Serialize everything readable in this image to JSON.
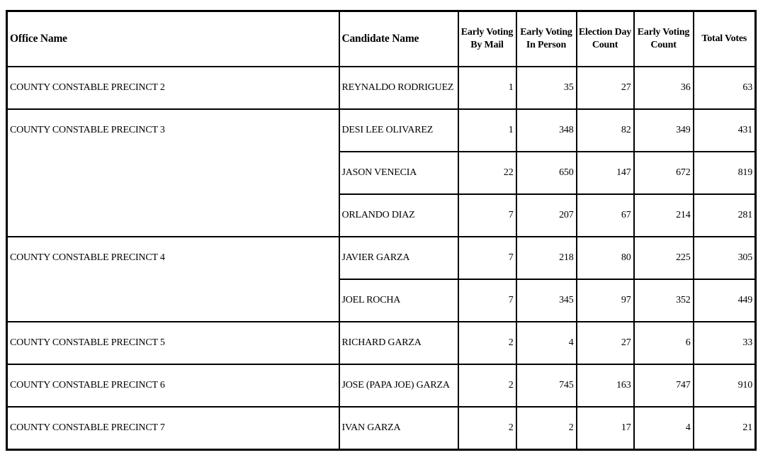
{
  "colors": {
    "border": "#000000",
    "text": "#000000",
    "background": "#ffffff"
  },
  "table": {
    "headers": [
      {
        "key": "office-name",
        "lines": [
          "Office Name"
        ],
        "align": "left"
      },
      {
        "key": "candidate-name",
        "lines": [
          "Candidate Name"
        ],
        "align": "left"
      },
      {
        "key": "early-voting-by-mail",
        "lines": [
          "Early Voting",
          "By Mail"
        ],
        "align": "center"
      },
      {
        "key": "early-voting-in-person",
        "lines": [
          "Early Voting",
          "In Person"
        ],
        "align": "center"
      },
      {
        "key": "election-day-count",
        "lines": [
          "Election Day",
          "Count"
        ],
        "align": "center"
      },
      {
        "key": "early-voting-count",
        "lines": [
          "Early Voting",
          "Count"
        ],
        "align": "center"
      },
      {
        "key": "total-votes",
        "lines": [
          "Total Votes"
        ],
        "align": "center"
      }
    ],
    "value_keys": [
      "early-voting-by-mail",
      "early-voting-in-person",
      "election-day-count",
      "early-voting-count",
      "total-votes"
    ],
    "groups": [
      {
        "office": "COUNTY CONSTABLE PRECINCT 2",
        "candidates": [
          {
            "name": "REYNALDO RODRIGUEZ",
            "values": [
              1,
              35,
              27,
              36,
              63
            ]
          }
        ]
      },
      {
        "office": "COUNTY CONSTABLE PRECINCT 3",
        "candidates": [
          {
            "name": "DESI LEE OLIVAREZ",
            "values": [
              1,
              348,
              82,
              349,
              431
            ]
          },
          {
            "name": "JASON VENECIA",
            "values": [
              22,
              650,
              147,
              672,
              819
            ]
          },
          {
            "name": "ORLANDO DIAZ",
            "values": [
              7,
              207,
              67,
              214,
              281
            ]
          }
        ]
      },
      {
        "office": "COUNTY CONSTABLE PRECINCT 4",
        "candidates": [
          {
            "name": "JAVIER GARZA",
            "values": [
              7,
              218,
              80,
              225,
              305
            ]
          },
          {
            "name": "JOEL ROCHA",
            "values": [
              7,
              345,
              97,
              352,
              449
            ]
          }
        ]
      },
      {
        "office": "COUNTY CONSTABLE PRECINCT 5",
        "candidates": [
          {
            "name": "RICHARD GARZA",
            "values": [
              2,
              4,
              27,
              6,
              33
            ]
          }
        ]
      },
      {
        "office": "COUNTY CONSTABLE PRECINCT 6",
        "candidates": [
          {
            "name": "JOSE (PAPA JOE) GARZA",
            "values": [
              2,
              745,
              163,
              747,
              910
            ]
          }
        ]
      },
      {
        "office": "COUNTY CONSTABLE PRECINCT 7",
        "candidates": [
          {
            "name": "IVAN GARZA",
            "values": [
              2,
              2,
              17,
              4,
              21
            ]
          }
        ]
      }
    ]
  }
}
